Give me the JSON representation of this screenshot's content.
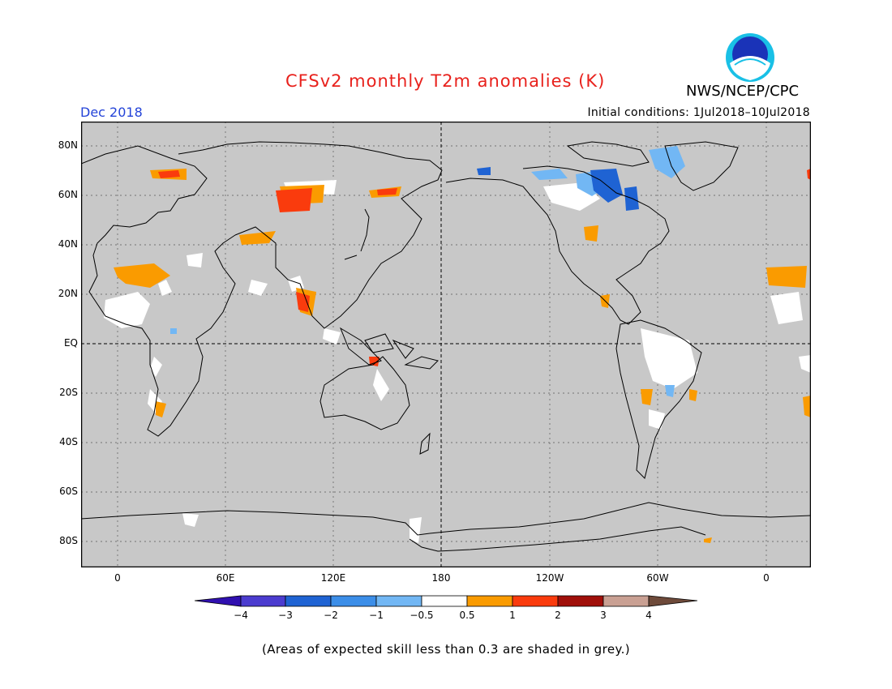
{
  "title": "CFSv2 monthly T2m anomalies (K)",
  "agency": "NWS/NCEP/CPC",
  "logo_text": "NOAA",
  "month": "Dec 2018",
  "initial_conditions": "Initial conditions: 1Jul2018–10Jul2018",
  "lat_labels": [
    "80N",
    "60N",
    "40N",
    "20N",
    "EQ",
    "20S",
    "40S",
    "60S",
    "80S"
  ],
  "lon_labels": [
    "0",
    "60E",
    "120E",
    "180",
    "120W",
    "60W",
    "0"
  ],
  "colorbar": {
    "labels": [
      "−4",
      "−3",
      "−2",
      "−1",
      "−0.5",
      "0.5",
      "1",
      "2",
      "3",
      "4"
    ],
    "colors": [
      "#3010b0",
      "#4b3ccf",
      "#1f63d3",
      "#3c8ee8",
      "#72b7f4",
      "#ffffff",
      "#fa9b00",
      "#fa3b0d",
      "#a00f0a",
      "#c9a093",
      "#6e4a3a"
    ]
  },
  "map_colors": {
    "background": "#c8c8c8",
    "coastline": "#000000",
    "warm1": "#fa9b00",
    "warm2": "#fa3b0d",
    "cool1": "#72b7f4",
    "cool2": "#3c8ee8",
    "cool3": "#1f63d3",
    "neutral": "#ffffff"
  },
  "footnote": "(Areas of expected skill less than 0.3 are shaded in grey.)"
}
